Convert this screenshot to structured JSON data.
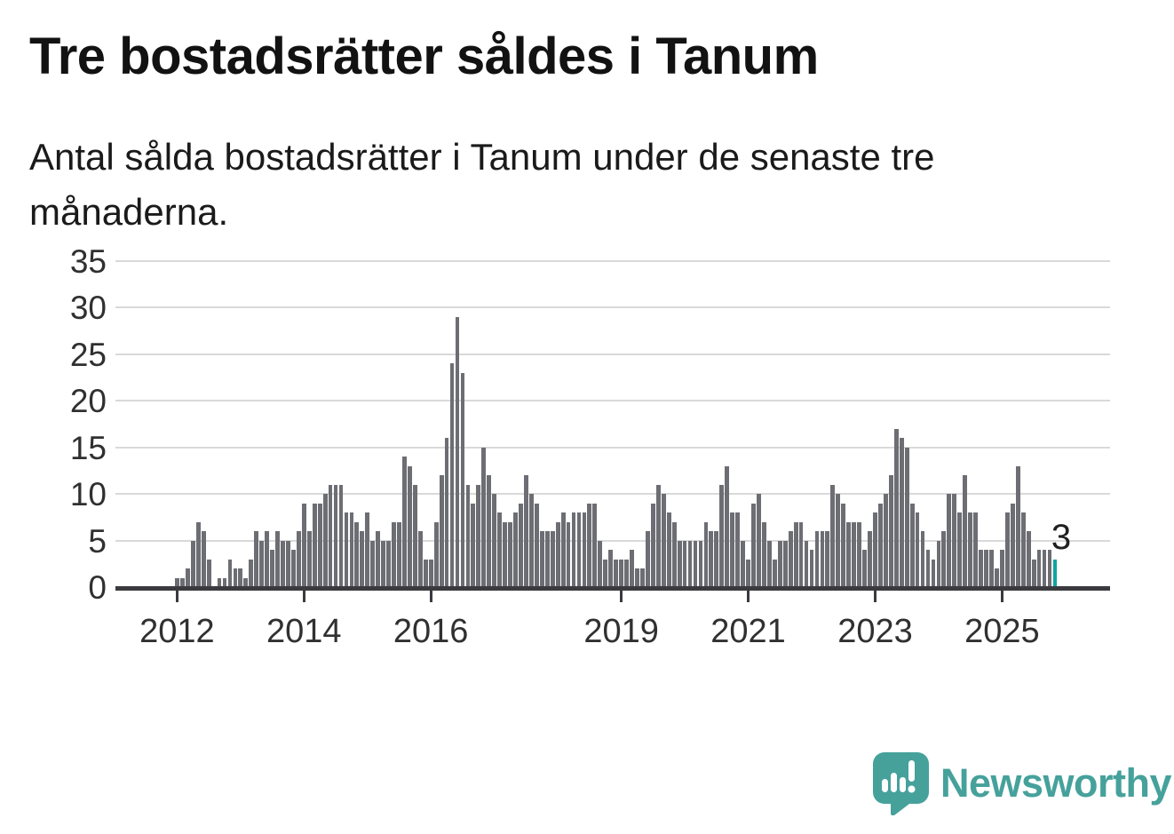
{
  "title": "Tre bostadsrätter såldes i Tanum",
  "subtitle": "Antal sålda bostadsrätter i Tanum under de senaste tre månaderna.",
  "annotation": {
    "last_value_label": "3"
  },
  "logo": {
    "brand": "Newsworthy",
    "icon": "newsworthy-speech-bubble-barchart-icon"
  },
  "colors": {
    "bar": "#6d6d74",
    "highlight": "#0da5a4",
    "grid": "#d9d9d9",
    "axis": "#3a3a3f",
    "logo_teal": "#46a19b",
    "text": "#303030"
  },
  "chart_data": {
    "type": "bar",
    "title": "Tre bostadsrätter såldes i Tanum",
    "subtitle": "Antal sålda bostadsrätter i Tanum under de senaste tre månaderna.",
    "ylabel": "",
    "xlabel": "",
    "ylim": [
      0,
      35
    ],
    "y_ticks": [
      0,
      5,
      10,
      15,
      20,
      25,
      30,
      35
    ],
    "grid": "horizontal",
    "legend": "none",
    "frequency": "monthly",
    "start_month": "2012-01",
    "end_month": "2025-11",
    "x_tick_labels": [
      "2012",
      "2014",
      "2016",
      "2019",
      "2021",
      "2023",
      "2025"
    ],
    "x_tick_month_indices": [
      0,
      24,
      48,
      84,
      108,
      132,
      156
    ],
    "highlight_last": true,
    "last_value_label": "3",
    "values": [
      1,
      1,
      2,
      5,
      7,
      6,
      3,
      0,
      1,
      1,
      3,
      2,
      2,
      1,
      3,
      6,
      5,
      6,
      4,
      6,
      5,
      5,
      4,
      6,
      9,
      6,
      9,
      9,
      10,
      11,
      11,
      11,
      8,
      8,
      7,
      6,
      8,
      5,
      6,
      5,
      5,
      7,
      7,
      14,
      13,
      11,
      6,
      3,
      3,
      7,
      12,
      16,
      24,
      29,
      23,
      11,
      9,
      11,
      15,
      12,
      10,
      8,
      7,
      7,
      8,
      9,
      12,
      10,
      9,
      6,
      6,
      6,
      7,
      8,
      7,
      8,
      8,
      8,
      9,
      9,
      5,
      3,
      4,
      3,
      3,
      3,
      4,
      2,
      2,
      6,
      9,
      11,
      10,
      8,
      7,
      5,
      5,
      5,
      5,
      5,
      7,
      6,
      6,
      11,
      13,
      8,
      8,
      5,
      3,
      9,
      10,
      7,
      5,
      3,
      5,
      5,
      6,
      7,
      7,
      5,
      4,
      6,
      6,
      6,
      11,
      10,
      9,
      7,
      7,
      7,
      4,
      6,
      8,
      9,
      10,
      12,
      17,
      16,
      15,
      9,
      8,
      6,
      4,
      3,
      5,
      6,
      10,
      10,
      8,
      12,
      8,
      8,
      4,
      4,
      4,
      2,
      4,
      8,
      9,
      13,
      8,
      6,
      3,
      4,
      4,
      4,
      3
    ]
  }
}
